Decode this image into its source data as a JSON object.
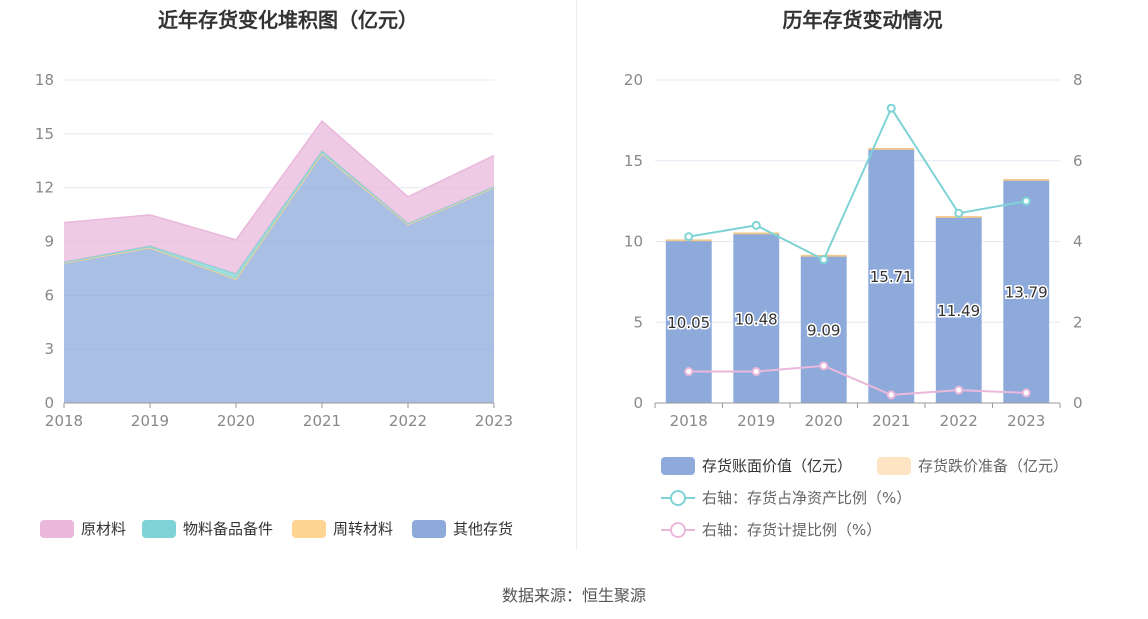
{
  "source": "数据来源：恒生聚源",
  "chart_data": [
    {
      "type": "area",
      "stacked": true,
      "title": "近年存货变化堆积图（亿元）",
      "categories": [
        "2018",
        "2019",
        "2020",
        "2021",
        "2022",
        "2023"
      ],
      "ylim": [
        0,
        18
      ],
      "yticks": [
        0,
        3,
        6,
        9,
        12,
        15,
        18
      ],
      "grid": true,
      "legend_position": "bottom",
      "series": [
        {
          "name": "其他存货",
          "color": "#8eaadb",
          "values": [
            7.8,
            8.65,
            6.9,
            13.9,
            9.95,
            12.0
          ]
        },
        {
          "name": "周转材料",
          "color": "#ffd591",
          "values": [
            0.0,
            0.0,
            0.0,
            0.0,
            0.0,
            0.0
          ]
        },
        {
          "name": "物料备品备件",
          "color": "#7fd3d6",
          "values": [
            0.05,
            0.1,
            0.3,
            0.15,
            0.05,
            0.05
          ]
        },
        {
          "name": "原材料",
          "color": "#eab8db",
          "values": [
            2.2,
            1.73,
            1.89,
            1.66,
            1.49,
            1.74
          ]
        }
      ]
    },
    {
      "type": "bar",
      "title": "历年存货变动情况",
      "categories": [
        "2018",
        "2019",
        "2020",
        "2021",
        "2022",
        "2023"
      ],
      "ylim": [
        0,
        20
      ],
      "yticks": [
        0,
        5,
        10,
        15,
        20
      ],
      "y2lim": [
        0,
        8
      ],
      "y2ticks": [
        0,
        2,
        4,
        6,
        8
      ],
      "grid": true,
      "legend_position": "bottom",
      "bar_series": [
        {
          "name": "存货账面价值（亿元）",
          "color": "#8eaadb",
          "values": [
            10.05,
            10.48,
            9.09,
            15.71,
            11.49,
            13.79
          ],
          "labels": [
            "10.05",
            "10.48",
            "9.09",
            "15.71",
            "11.49",
            "13.79"
          ]
        },
        {
          "name": "存货跌价准备（亿元）",
          "color": "#fde5c3",
          "values": [
            0.02,
            0.02,
            0.02,
            0.02,
            0.02,
            0.02
          ]
        }
      ],
      "line_series": [
        {
          "name": "右轴：存货占净资产比例（%）",
          "color": "#7fd3d6",
          "axis": "right",
          "values": [
            4.12,
            4.4,
            3.55,
            7.3,
            4.7,
            5.0
          ]
        },
        {
          "name": "右轴：存货计提比例（%）",
          "color": "#eab8db",
          "axis": "right",
          "values": [
            0.78,
            0.78,
            0.92,
            0.2,
            0.32,
            0.25
          ]
        }
      ]
    }
  ]
}
